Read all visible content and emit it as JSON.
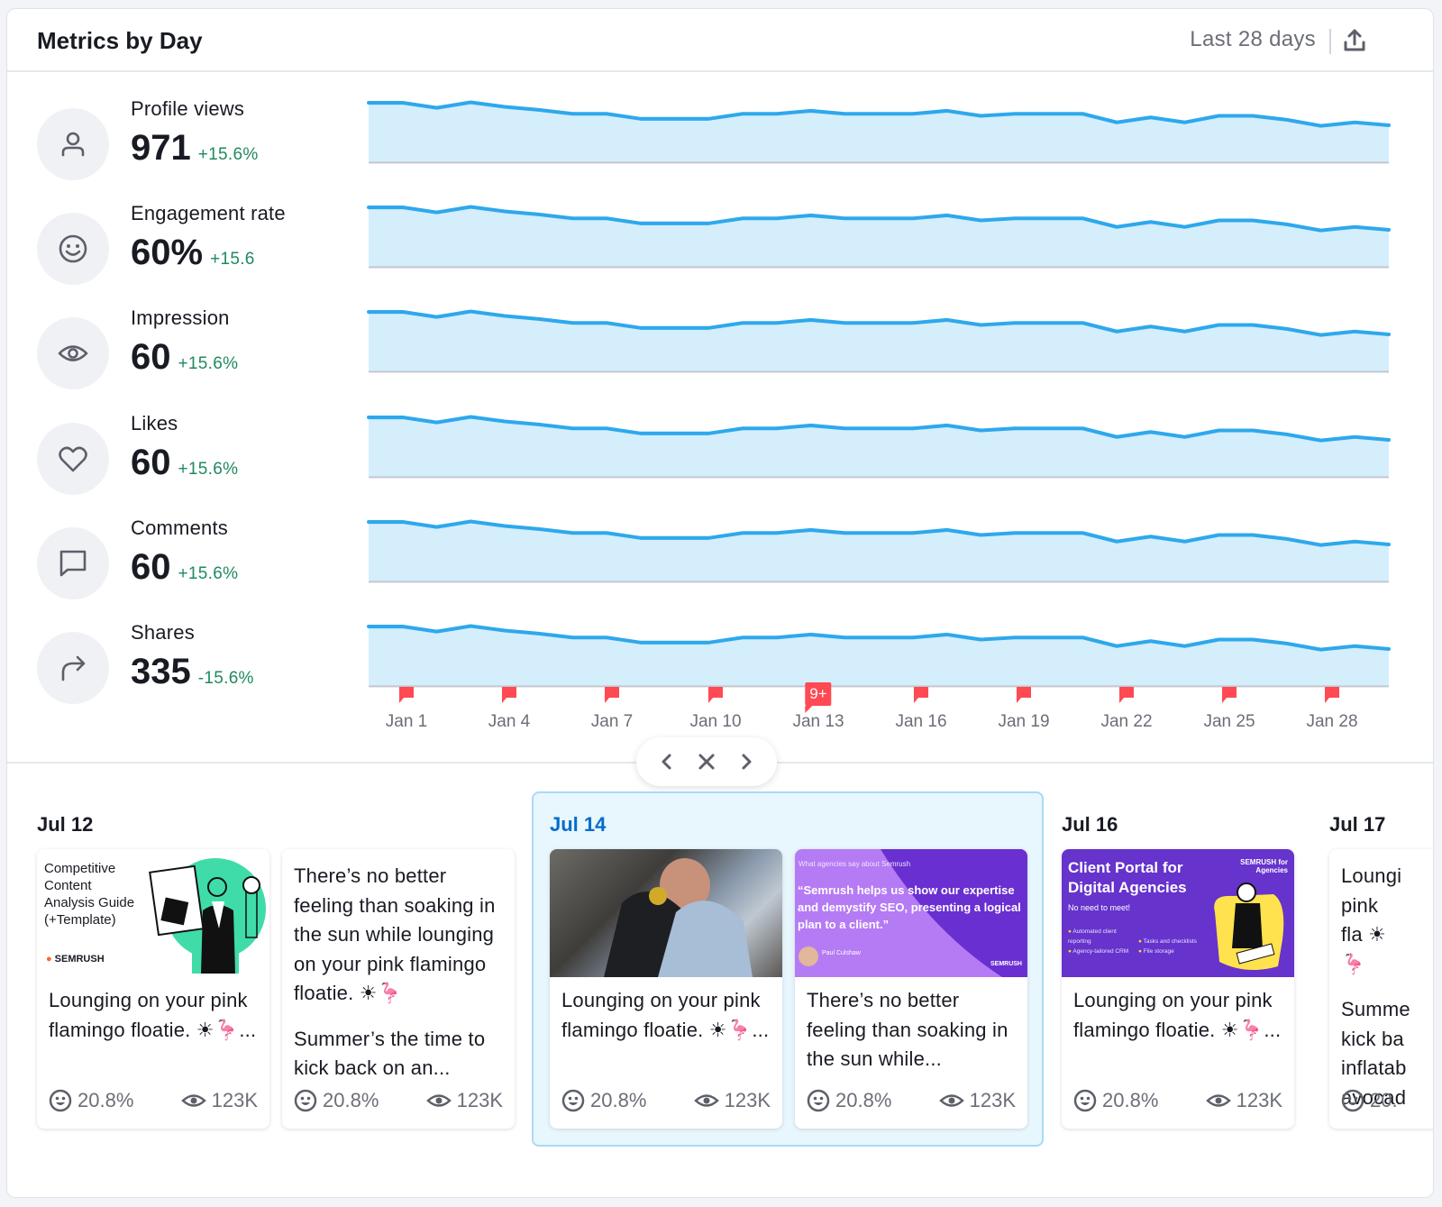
{
  "header": {
    "title": "Metrics by Day",
    "date_range": "Last 28 days",
    "export_icon": "upload-icon"
  },
  "metrics": [
    {
      "label": "Profile views",
      "value": "971",
      "delta": "+15.6%",
      "icon": "user-icon"
    },
    {
      "label": "Engagement rate",
      "value": "60%",
      "delta": "+15.6",
      "icon": "smiley-icon"
    },
    {
      "label": "Impression",
      "value": "60",
      "delta": "+15.6%",
      "icon": "eye-icon"
    },
    {
      "label": "Likes",
      "value": "60",
      "delta": "+15.6%",
      "icon": "heart-icon"
    },
    {
      "label": "Comments",
      "value": "60",
      "delta": "+15.6%",
      "icon": "comment-icon"
    },
    {
      "label": "Shares",
      "value": "335",
      "delta": "-15.6%",
      "icon": "share-arrow-icon"
    }
  ],
  "colors": {
    "line": "#2ea8ec",
    "area": "#d4eefc",
    "positive": "#1f8a5f",
    "flag": "#ff4953",
    "selected_day": "#006dca",
    "selected_bg": "#e8f6fe"
  },
  "chart_data": {
    "type": "area",
    "title": "Metrics by Day",
    "x_ticks": [
      "Jan 1",
      "Jan 4",
      "Jan 7",
      "Jan 10",
      "Jan 13",
      "Jan 16",
      "Jan 19",
      "Jan 22",
      "Jan 25",
      "Jan 28"
    ],
    "note": "Six identical sparkline shapes (one per metric); y values are relative heights (0-100) above baseline, no y-axis labels shown",
    "x": [
      1,
      2,
      3,
      4,
      5,
      6,
      7,
      8,
      9,
      10,
      11,
      12,
      13,
      14,
      15,
      16,
      17,
      18,
      19,
      20,
      21,
      22,
      23,
      24,
      25,
      26,
      27,
      28,
      29,
      30,
      31
    ],
    "series": [
      {
        "name": "Profile views",
        "values": [
          94,
          94,
          84,
          95,
          86,
          80,
          72,
          72,
          62,
          62,
          62,
          72,
          72,
          78,
          72,
          72,
          72,
          78,
          68,
          72,
          72,
          72,
          55,
          65,
          55,
          68,
          68,
          60,
          48,
          55,
          49
        ]
      },
      {
        "name": "Engagement rate",
        "values": [
          94,
          94,
          84,
          95,
          86,
          80,
          72,
          72,
          62,
          62,
          62,
          72,
          72,
          78,
          72,
          72,
          72,
          78,
          68,
          72,
          72,
          72,
          55,
          65,
          55,
          68,
          68,
          60,
          48,
          55,
          49
        ]
      },
      {
        "name": "Impression",
        "values": [
          94,
          94,
          84,
          95,
          86,
          80,
          72,
          72,
          62,
          62,
          62,
          72,
          72,
          78,
          72,
          72,
          72,
          78,
          68,
          72,
          72,
          72,
          55,
          65,
          55,
          68,
          68,
          60,
          48,
          55,
          49
        ]
      },
      {
        "name": "Likes",
        "values": [
          94,
          94,
          84,
          95,
          86,
          80,
          72,
          72,
          62,
          62,
          62,
          72,
          72,
          78,
          72,
          72,
          72,
          78,
          68,
          72,
          72,
          72,
          55,
          65,
          55,
          68,
          68,
          60,
          48,
          55,
          49
        ]
      },
      {
        "name": "Comments",
        "values": [
          94,
          94,
          84,
          95,
          86,
          80,
          72,
          72,
          62,
          62,
          62,
          72,
          72,
          78,
          72,
          72,
          72,
          78,
          68,
          72,
          72,
          72,
          55,
          65,
          55,
          68,
          68,
          60,
          48,
          55,
          49
        ]
      },
      {
        "name": "Shares",
        "values": [
          94,
          94,
          84,
          95,
          86,
          80,
          72,
          72,
          62,
          62,
          62,
          72,
          72,
          78,
          72,
          72,
          72,
          78,
          68,
          72,
          72,
          72,
          55,
          65,
          55,
          68,
          68,
          60,
          48,
          55,
          49
        ]
      }
    ],
    "annotations": [
      {
        "x_label": "Jan 1",
        "type": "flag"
      },
      {
        "x_label": "Jan 4",
        "type": "flag"
      },
      {
        "x_label": "Jan 7",
        "type": "flag"
      },
      {
        "x_label": "Jan 10",
        "type": "flag"
      },
      {
        "x_label": "Jan 13",
        "type": "flag-count",
        "text": "9+"
      },
      {
        "x_label": "Jan 16",
        "type": "flag"
      },
      {
        "x_label": "Jan 19",
        "type": "flag"
      },
      {
        "x_label": "Jan 22",
        "type": "flag"
      },
      {
        "x_label": "Jan 25",
        "type": "flag"
      },
      {
        "x_label": "Jan 28",
        "type": "flag"
      }
    ],
    "grid": false,
    "legend": "none"
  },
  "timeline": {
    "x_labels": [
      "Jan 1",
      "Jan 4",
      "Jan 7",
      "Jan 10",
      "Jan 13",
      "Jan 16",
      "Jan 19",
      "Jan 22",
      "Jan 25",
      "Jan 28"
    ],
    "flag_badge": "9+"
  },
  "pager": {
    "prev_icon": "chevron-left-icon",
    "close_icon": "close-icon",
    "next_icon": "chevron-right-icon"
  },
  "days": [
    {
      "date": "Jul 12",
      "selected": false,
      "posts": [
        {
          "thumbnail": "guide",
          "thumb_text": "Competitive\nContent\nAnalysis Guide\n(+Template)",
          "thumb_brand": "SEMRUSH",
          "text": "Lounging on your pink flamingo floatie. ☀🦩...",
          "engagement": "20.8%",
          "views": "123K"
        },
        {
          "thumbnail": "none",
          "text": "There’s no better feeling than soaking in the sun while lounging on your pink flamingo floatie. ☀🦩",
          "text2": "Summer’s the time to kick back on an...",
          "engagement": "20.8%",
          "views": "123K"
        }
      ]
    },
    {
      "date": "Jul 14",
      "selected": true,
      "posts": [
        {
          "thumbnail": "photo",
          "text": "Lounging on your pink flamingo floatie. ☀🦩...",
          "engagement": "20.8%",
          "views": "123K"
        },
        {
          "thumbnail": "quote",
          "thumb_small": "What agencies say about Semrush",
          "thumb_quote": "“Semrush helps us show our expertise and demystify SEO, presenting a logical plan to a client.”",
          "thumb_name": "Paul Culshaw",
          "thumb_role": "SEO Manager, CTI Digital",
          "thumb_brand": "SEMRUSH",
          "text": "There’s no better feeling than soaking in the sun while...",
          "engagement": "20.8%",
          "views": "123K"
        }
      ]
    },
    {
      "date": "Jul 16",
      "selected": false,
      "posts": [
        {
          "thumbnail": "portal",
          "thumb_title": "Client Portal for Digital Agencies",
          "thumb_sub": "No need to meet!",
          "thumb_items": [
            "Automated client reporting",
            "Tasks and checklists",
            "Agency-tailored CRM",
            "File storage"
          ],
          "thumb_brand": "SEMRUSH for Agencies",
          "text": "Lounging on your pink flamingo floatie. ☀🦩...",
          "engagement": "20.8%",
          "views": "123K"
        }
      ]
    },
    {
      "date": "Jul 17",
      "selected": false,
      "posts": [
        {
          "thumbnail": "none",
          "text": "Loungi pink fla ☀🦩",
          "text2": "Summe kick ba inflatab avocad",
          "engagement": "20.",
          "views": ""
        }
      ]
    }
  ]
}
